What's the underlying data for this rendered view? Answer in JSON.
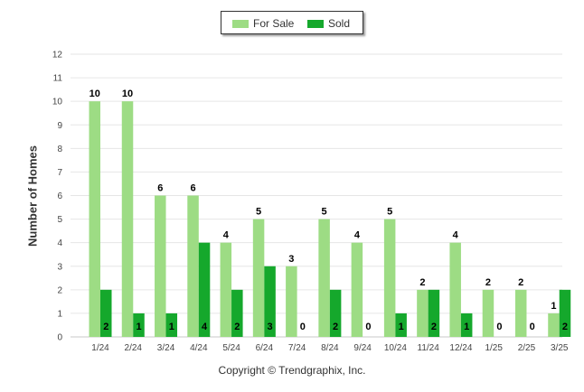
{
  "chart_data": {
    "type": "bar",
    "categories": [
      "1/24",
      "2/24",
      "3/24",
      "4/24",
      "5/24",
      "6/24",
      "7/24",
      "8/24",
      "9/24",
      "10/24",
      "11/24",
      "12/24",
      "1/25",
      "2/25",
      "3/25"
    ],
    "series": [
      {
        "name": "For Sale",
        "values": [
          10,
          10,
          6,
          6,
          4,
          5,
          3,
          5,
          4,
          5,
          2,
          4,
          2,
          2,
          1
        ],
        "color": "#9ddc84"
      },
      {
        "name": "Sold",
        "values": [
          2,
          1,
          1,
          4,
          2,
          3,
          0,
          2,
          0,
          1,
          2,
          1,
          0,
          0,
          2
        ],
        "color": "#15a82c"
      }
    ],
    "ylabel": "Number of Homes",
    "xlabel": "",
    "ylim": [
      0,
      12
    ],
    "yticks": [
      "0",
      "1",
      "2",
      "3",
      "4",
      "5",
      "6",
      "7",
      "8",
      "9",
      "10",
      "11",
      "12"
    ],
    "grid": true,
    "legend": "top-center"
  },
  "footer": {
    "copyright": "Copyright © Trendgraphix, Inc."
  }
}
